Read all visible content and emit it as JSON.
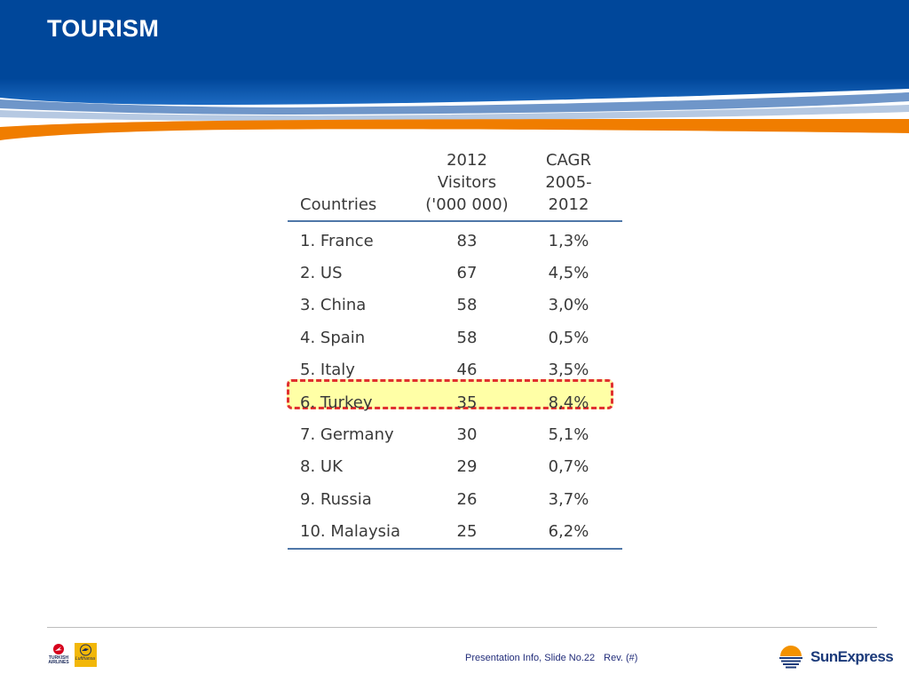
{
  "slide": {
    "title": "TOURISM"
  },
  "table": {
    "headers": [
      {
        "lines": [
          "Countries"
        ]
      },
      {
        "lines": [
          "2012",
          "Visitors",
          "('000 000)"
        ]
      },
      {
        "lines": [
          "CAGR",
          "2005-",
          "2012"
        ]
      }
    ],
    "rows": [
      {
        "country": "1. France",
        "visitors": "83",
        "cagr": "1,3%"
      },
      {
        "country": "2. US",
        "visitors": "67",
        "cagr": "4,5%"
      },
      {
        "country": "3. China",
        "visitors": "58",
        "cagr": "3,0%"
      },
      {
        "country": "4. Spain",
        "visitors": "58",
        "cagr": "0,5%"
      },
      {
        "country": "5. Italy",
        "visitors": "46",
        "cagr": "3,5%"
      },
      {
        "country": "6. Turkey",
        "visitors": "35",
        "cagr": "8,4%"
      },
      {
        "country": "7. Germany",
        "visitors": "30",
        "cagr": "5,1%"
      },
      {
        "country": "8. UK",
        "visitors": "29",
        "cagr": "0,7%"
      },
      {
        "country": "9. Russia",
        "visitors": "26",
        "cagr": "3,7%"
      },
      {
        "country": "10. Malaysia",
        "visitors": "25",
        "cagr": "6,2%"
      }
    ],
    "highlighted_row": "6. Turkey"
  },
  "footer": {
    "info": "Presentation Info, Slide No.22",
    "rev": "Rev. (#)",
    "logos": {
      "left_1": {
        "icon": "turkish-airlines-logo",
        "text": "TURKISH AIRLINES"
      },
      "left_2": {
        "icon": "lufthansa-logo",
        "text": "Lufthansa"
      },
      "right": {
        "icon": "sunexpress-logo",
        "text": "SunExpress"
      }
    }
  },
  "colors": {
    "header_blue": "#004a98",
    "header_stripe_orange": "#f07d00",
    "table_rule": "#4f77a8",
    "highlight_fill": "#ffffa6",
    "highlight_border": "#e03030",
    "footer_text": "#222d7a"
  }
}
